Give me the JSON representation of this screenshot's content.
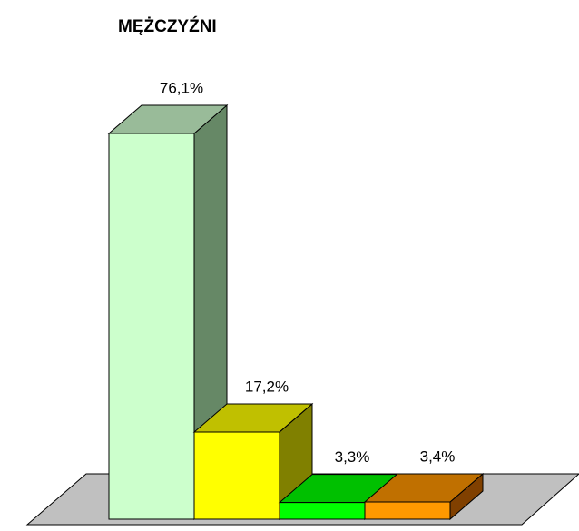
{
  "chart_data": {
    "type": "bar3d",
    "title": "MĘŻCZYŹNI",
    "values": [
      76.1,
      17.2,
      3.3,
      3.4
    ],
    "value_labels": [
      "76,1%",
      "17,2%",
      "3,3%",
      "3,4%"
    ],
    "colors": [
      "#ccffcc",
      "#ffff00",
      "#00ff00",
      "#ff9900"
    ],
    "top_colors": [
      "#99bb99",
      "#c0c000",
      "#00c000",
      "#c07000"
    ],
    "side_colors": [
      "#668866",
      "#808000",
      "#008000",
      "#804000"
    ]
  }
}
